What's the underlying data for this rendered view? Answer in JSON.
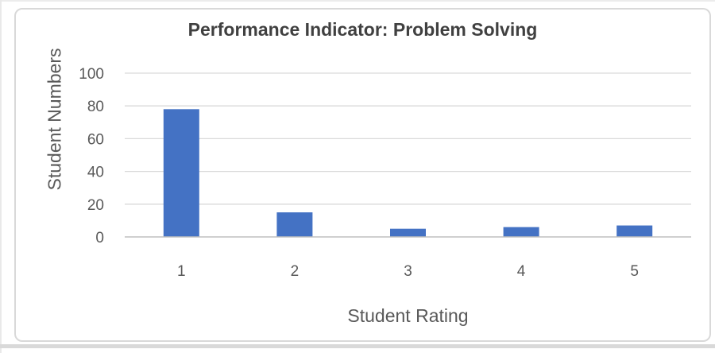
{
  "chart_data": {
    "type": "bar",
    "title": "Performance Indicator: Problem Solving",
    "xlabel": "Student Rating",
    "ylabel": "Student Numbers",
    "categories": [
      "1",
      "2",
      "3",
      "4",
      "5"
    ],
    "values": [
      78,
      15,
      5,
      6,
      7
    ],
    "ylim": [
      0,
      100
    ],
    "yticks": [
      0,
      20,
      40,
      60,
      80,
      100
    ],
    "grid": true,
    "legend": "none",
    "bar_color": "#4472C4",
    "gridline_color": "#D9D9D9",
    "axis_line_color": "#BFBFBF",
    "title_color": "#404040",
    "label_color": "#595959",
    "frame_border_color": "#D9D9D9"
  }
}
